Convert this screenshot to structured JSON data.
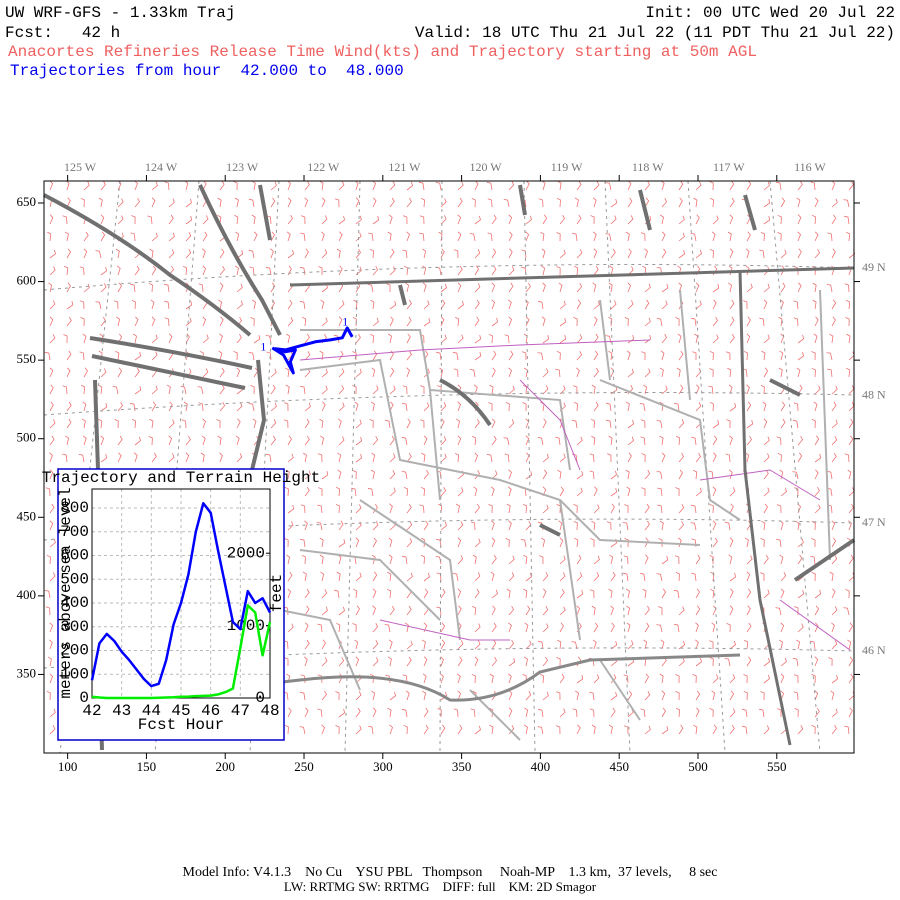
{
  "header": {
    "model": "UW WRF-GFS - 1.33km Traj",
    "init": "Init: 00 UTC Wed 20 Jul 22",
    "fcst": "Fcst:   42 h",
    "valid": "Valid: 18 UTC Thu 21 Jul 22 (11 PDT Thu 21 Jul 22)",
    "title": "Anacortes Refineries Release Time Wind(kts) and Trajectory starting at 50m AGL",
    "subtitle": "Trajectories from hour  42.000 to  48.000"
  },
  "chart_data": [
    {
      "type": "trajectory-map",
      "xlim": [
        85,
        599
      ],
      "ylim": [
        300,
        664
      ],
      "xticks": [
        100,
        150,
        200,
        250,
        300,
        350,
        400,
        450,
        500,
        550
      ],
      "yticks": [
        350,
        400,
        450,
        500,
        550,
        600,
        650
      ],
      "lon_labels": [
        "125 W",
        "124 W",
        "123 W",
        "122 W",
        "121 W",
        "120 W",
        "119 W",
        "118 W",
        "117 W",
        "116 W"
      ],
      "lat_labels": [
        "49 N",
        "48 N",
        "47 N",
        "46 N"
      ],
      "trajectory": {
        "color": "#0000ff",
        "x": [
          280.6,
          277.4,
          274.3,
          266.7,
          257.2,
          247.7,
          238.1,
          231.8,
          238.1,
          244.5,
          241.3,
          243.2,
          236.9,
          229.9
        ],
        "y": [
          564.8,
          570.5,
          564.2,
          562.9,
          561.7,
          559.1,
          556.5,
          557.2,
          555.3,
          556.5,
          548.9,
          541.9,
          553.4,
          557.8
        ]
      },
      "markers": [
        "1",
        "1"
      ]
    },
    {
      "type": "line",
      "title": "Trajectory and Terrain Height",
      "xlabel": "Fcst Hour",
      "ylabel": "meters above sea level",
      "y2label": "feet",
      "x": [
        42,
        42.25,
        42.5,
        42.75,
        43,
        43.25,
        43.5,
        43.75,
        44,
        44.25,
        44.5,
        44.75,
        45,
        45.25,
        45.5,
        45.75,
        46,
        46.25,
        46.5,
        46.75,
        47,
        47.25,
        47.5,
        47.75,
        48
      ],
      "series": [
        {
          "color": "#0000ff",
          "values": [
            75,
            230,
            270,
            240,
            195,
            160,
            120,
            80,
            50,
            60,
            160,
            310,
            400,
            520,
            700,
            820,
            780,
            620,
            470,
            320,
            290,
            450,
            400,
            420,
            360
          ]
        },
        {
          "color": "#00ee00",
          "values": [
            5,
            2,
            0,
            0,
            0,
            0,
            0,
            0,
            0,
            1,
            2,
            3,
            5,
            6,
            8,
            9,
            10,
            15,
            25,
            40,
            210,
            390,
            360,
            180,
            320
          ]
        }
      ],
      "xlim": [
        42,
        48
      ],
      "xticks": [
        42,
        43,
        44,
        45,
        46,
        47,
        48
      ],
      "ylim": [
        0,
        880
      ],
      "yticks": [
        0,
        100,
        200,
        300,
        400,
        500,
        600,
        700,
        800
      ],
      "y2lim": [
        0,
        2887
      ],
      "y2ticks": [
        0,
        1000,
        2000
      ],
      "grid": true
    }
  ],
  "footer": {
    "line1": "Model Info: V4.1.3    No Cu    YSU PBL   Thompson     Noah-MP    1.3 km,  37 levels,     8 sec",
    "line2": "LW: RRTMG SW: RRTMG    DIFF: full    KM: 2D Smagor"
  }
}
